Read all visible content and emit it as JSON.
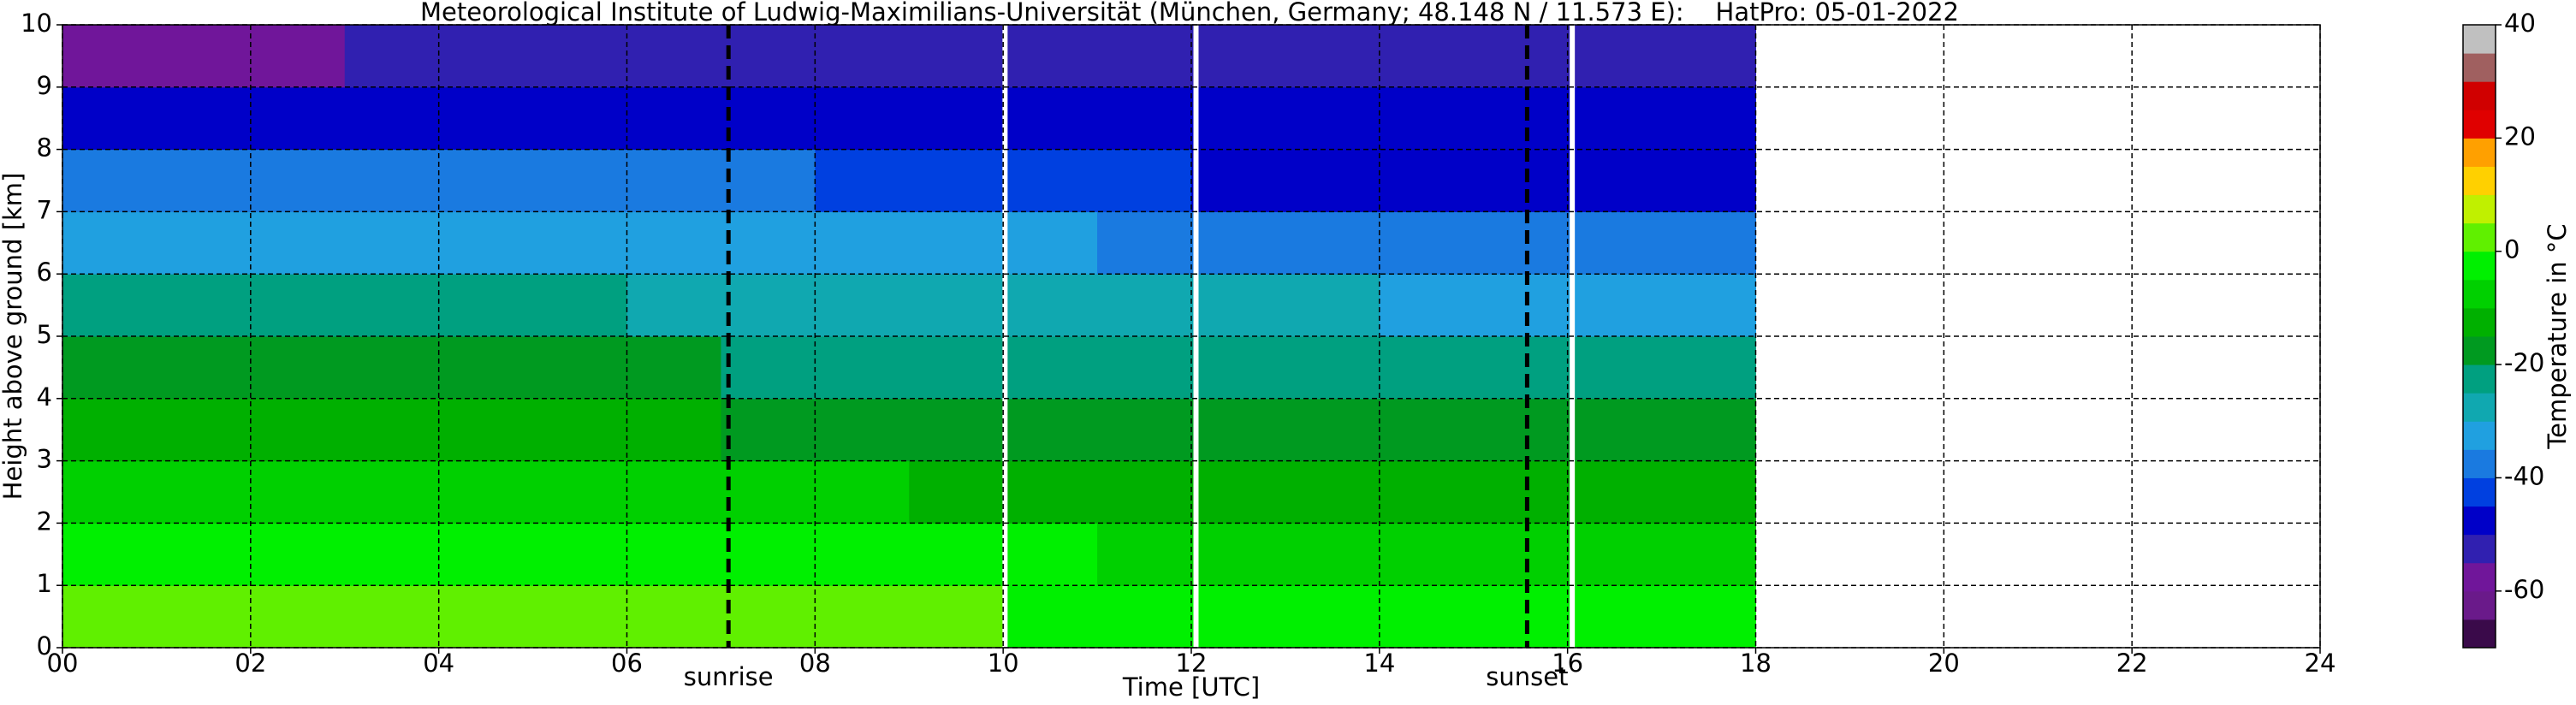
{
  "chart_data": {
    "type": "heatmap",
    "title": "Meteorological Institute of Ludwig-Maximilians-Universität (München, Germany; 48.148 N / 11.573 E):    HatPro: 05-01-2022",
    "xlabel": "Time [UTC]",
    "ylabel": "Height above ground [km]",
    "x": [
      0,
      1,
      2,
      3,
      4,
      5,
      6,
      7,
      8,
      9,
      10,
      11,
      12,
      13,
      14,
      15,
      16,
      17,
      18
    ],
    "y": [
      0,
      1,
      2,
      3,
      4,
      5,
      6,
      7,
      8,
      9,
      10
    ],
    "values": [
      [
        3,
        3,
        2,
        2,
        2,
        2,
        2,
        2,
        1,
        1,
        -1,
        -2,
        -3,
        -3,
        -4,
        -4,
        -4,
        -4
      ],
      [
        -3,
        -3,
        -3,
        -3,
        -4,
        -4,
        -4,
        -4,
        -4,
        -4,
        -5,
        -6,
        -7,
        -7,
        -7,
        -7,
        -7,
        -7
      ],
      [
        -9,
        -9,
        -9,
        -9,
        -9,
        -10,
        -10,
        -10,
        -10,
        -11,
        -12,
        -13,
        -14,
        -14,
        -14,
        -14,
        -14,
        -14
      ],
      [
        -15,
        -15,
        -15,
        -15,
        -15,
        -15,
        -15,
        -16,
        -16,
        -16,
        -17,
        -18,
        -19,
        -19,
        -19,
        -19,
        -19,
        -19
      ],
      [
        -19,
        -19,
        -19,
        -20,
        -20,
        -20,
        -20,
        -21,
        -21,
        -21,
        -22,
        -22,
        -23,
        -23,
        -23,
        -24,
        -24,
        -24
      ],
      [
        -24,
        -24,
        -24,
        -25,
        -25,
        -25,
        -26,
        -26,
        -26,
        -27,
        -28,
        -29,
        -30,
        -30,
        -31,
        -31,
        -31,
        -31
      ],
      [
        -31,
        -31,
        -31,
        -32,
        -32,
        -32,
        -33,
        -33,
        -33,
        -34,
        -35,
        -36,
        -37,
        -37,
        -37,
        -37,
        -37,
        -37
      ],
      [
        -38,
        -39,
        -39,
        -39,
        -40,
        -40,
        -40,
        -40,
        -41,
        -41,
        -43,
        -44,
        -46,
        -46,
        -46,
        -46,
        -46,
        -46
      ],
      [
        -47,
        -48,
        -48,
        -48,
        -48,
        -48,
        -48,
        -48,
        -48,
        -48,
        -49,
        -49,
        -50,
        -50,
        -50,
        -50,
        -50,
        -50
      ],
      [
        -57,
        -56,
        -56,
        -55,
        -55,
        -55,
        -55,
        -54,
        -54,
        -53,
        -52,
        -51,
        -51,
        -51,
        -51,
        -51,
        -51,
        -51
      ]
    ],
    "xlim": [
      0,
      24
    ],
    "xticks": [
      {
        "value": 0,
        "label": "00"
      },
      {
        "value": 2,
        "label": "02"
      },
      {
        "value": 4,
        "label": "04"
      },
      {
        "value": 6,
        "label": "06"
      },
      {
        "value": 8,
        "label": "08"
      },
      10,
      12,
      14,
      16,
      18,
      20,
      22,
      24
    ],
    "ylim": [
      0,
      10
    ],
    "yticks": [
      0,
      1,
      2,
      3,
      4,
      5,
      6,
      7,
      8,
      9,
      10
    ],
    "grid": true,
    "data_gaps": [
      10.02,
      12.05,
      16.05
    ],
    "annotations": [
      {
        "text": "sunrise",
        "x": 7.08
      },
      {
        "text": "sunset",
        "x": 15.57
      }
    ],
    "colorbar": {
      "label": "Temperature in °C",
      "lim": [
        -70,
        40
      ],
      "ticks": [
        -60,
        -40,
        -20,
        0,
        20,
        40
      ],
      "levels": [
        -70,
        -65,
        -60,
        -55,
        -50,
        -45,
        -40,
        -35,
        -30,
        -25,
        -20,
        -15,
        -10,
        -5,
        0,
        5,
        10,
        15,
        20,
        25,
        30,
        35,
        40
      ],
      "colors": [
        "#3a0a4a",
        "#6a1a8a",
        "#70169a",
        "#3020b0",
        "#0000c8",
        "#0040e0",
        "#1a7ae0",
        "#20a0e0",
        "#10a8b0",
        "#00a080",
        "#009a20",
        "#00b000",
        "#00d000",
        "#00f000",
        "#60f000",
        "#c0f000",
        "#ffd000",
        "#ffa000",
        "#e00000",
        "#d00000",
        "#a06060",
        "#c0c0c0"
      ]
    }
  }
}
